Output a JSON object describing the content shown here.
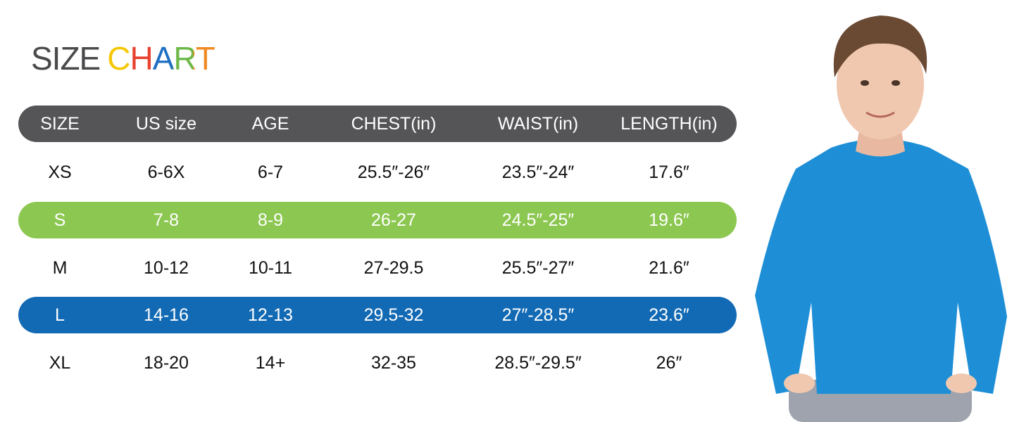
{
  "title": {
    "words": [
      "SIZE",
      "CHART"
    ]
  },
  "table": {
    "header": [
      "SIZE",
      "US size",
      "AGE",
      "CHEST(in)",
      "WAIST(in)",
      "LENGTH(in)"
    ],
    "rows": [
      [
        "XS",
        "6-6X",
        "6-7",
        "25.5″-26″",
        "23.5″-24″",
        "17.6″"
      ],
      [
        "S",
        "7-8",
        "8-9",
        "26-27",
        "24.5″-25″",
        "19.6″"
      ],
      [
        "M",
        "10-12",
        "10-11",
        "27-29.5",
        "25.5″-27″",
        "21.6″"
      ],
      [
        "L",
        "14-16",
        "12-13",
        "29.5-32",
        "27″-28.5″",
        "23.6″"
      ],
      [
        "XL",
        "18-20",
        "14+",
        "32-35",
        "28.5″-29.5″",
        "26″"
      ]
    ]
  }
}
